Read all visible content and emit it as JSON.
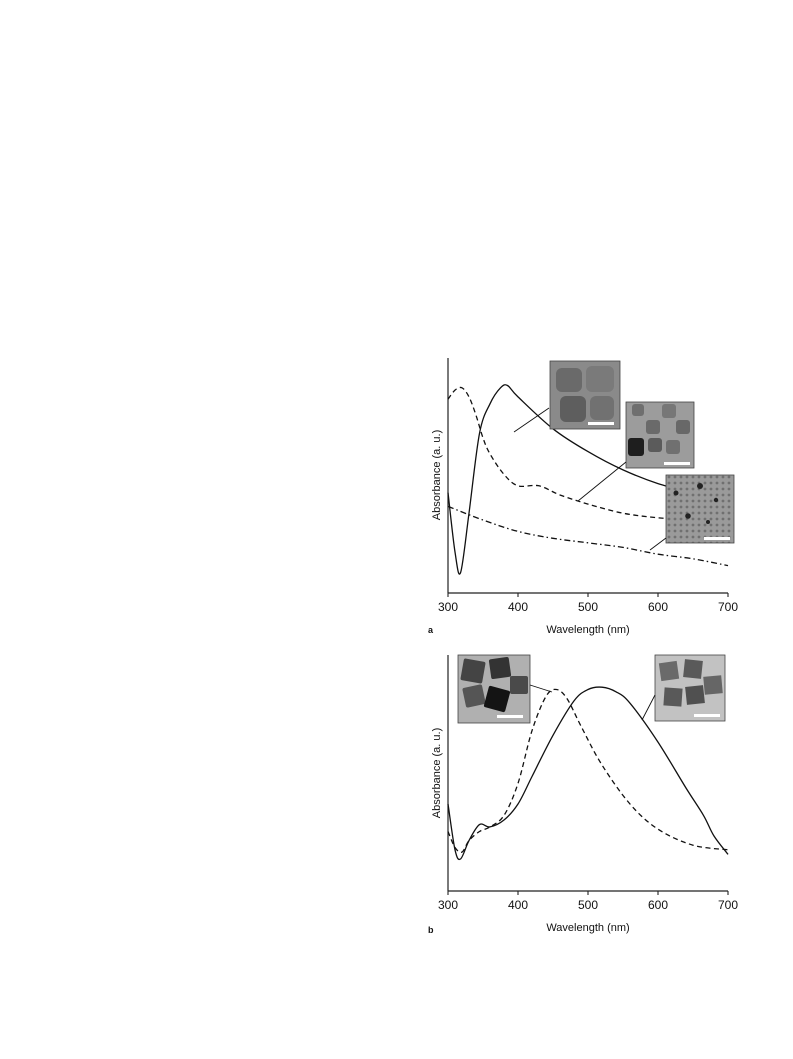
{
  "chart_data": [
    {
      "panel": "a",
      "type": "line",
      "xlabel": "Wavelength (nm)",
      "ylabel": "Absorbance (a. u.)",
      "xlim": [
        300,
        700
      ],
      "ylim": [
        0,
        1
      ],
      "xticks": [
        300,
        400,
        500,
        600,
        700
      ],
      "y_ticks_shown": false,
      "legend": "none",
      "annotations": [
        "TEM inset images with white scale bars, leader lines point to each curve"
      ],
      "series": [
        {
          "style": "solid",
          "x": [
            300,
            310,
            318,
            330,
            345,
            360,
            375,
            385,
            400,
            450,
            500,
            550,
            600,
            650,
            700
          ],
          "y": [
            0.44,
            0.18,
            0.09,
            0.35,
            0.7,
            0.83,
            0.9,
            0.91,
            0.86,
            0.72,
            0.62,
            0.54,
            0.48,
            0.44,
            0.4
          ]
        },
        {
          "style": "dashed",
          "x": [
            300,
            310,
            320,
            330,
            340,
            350,
            360,
            380,
            400,
            430,
            460,
            500,
            550,
            600,
            650,
            700
          ],
          "y": [
            0.85,
            0.89,
            0.9,
            0.86,
            0.78,
            0.68,
            0.61,
            0.52,
            0.47,
            0.47,
            0.43,
            0.39,
            0.35,
            0.33,
            0.32,
            0.31
          ]
        },
        {
          "style": "dash-dot",
          "x": [
            300,
            350,
            400,
            450,
            500,
            550,
            600,
            650,
            700
          ],
          "y": [
            0.38,
            0.32,
            0.27,
            0.24,
            0.22,
            0.2,
            0.17,
            0.15,
            0.12
          ]
        }
      ]
    },
    {
      "panel": "b",
      "type": "line",
      "xlabel": "Wavelength (nm)",
      "ylabel": "Absorbance (a. u.)",
      "xlim": [
        300,
        700
      ],
      "ylim": [
        0,
        1
      ],
      "xticks": [
        300,
        400,
        500,
        600,
        700
      ],
      "y_ticks_shown": false,
      "legend": "none",
      "annotations": [
        "TEM inset images with white scale bars, leader lines point to each curve"
      ],
      "series": [
        {
          "style": "solid",
          "x": [
            300,
            310,
            318,
            330,
            345,
            360,
            380,
            400,
            420,
            450,
            480,
            500,
            520,
            540,
            560,
            600,
            640,
            665,
            680,
            700
          ],
          "y": [
            0.38,
            0.18,
            0.14,
            0.22,
            0.29,
            0.28,
            0.31,
            0.38,
            0.5,
            0.68,
            0.83,
            0.88,
            0.89,
            0.87,
            0.82,
            0.65,
            0.45,
            0.33,
            0.24,
            0.16
          ]
        },
        {
          "style": "dashed",
          "x": [
            300,
            310,
            320,
            330,
            345,
            360,
            380,
            400,
            420,
            440,
            455,
            470,
            490,
            520,
            560,
            600,
            650,
            700
          ],
          "y": [
            0.26,
            0.19,
            0.17,
            0.22,
            0.26,
            0.28,
            0.33,
            0.47,
            0.7,
            0.85,
            0.88,
            0.84,
            0.72,
            0.55,
            0.38,
            0.27,
            0.2,
            0.18
          ]
        }
      ]
    }
  ]
}
